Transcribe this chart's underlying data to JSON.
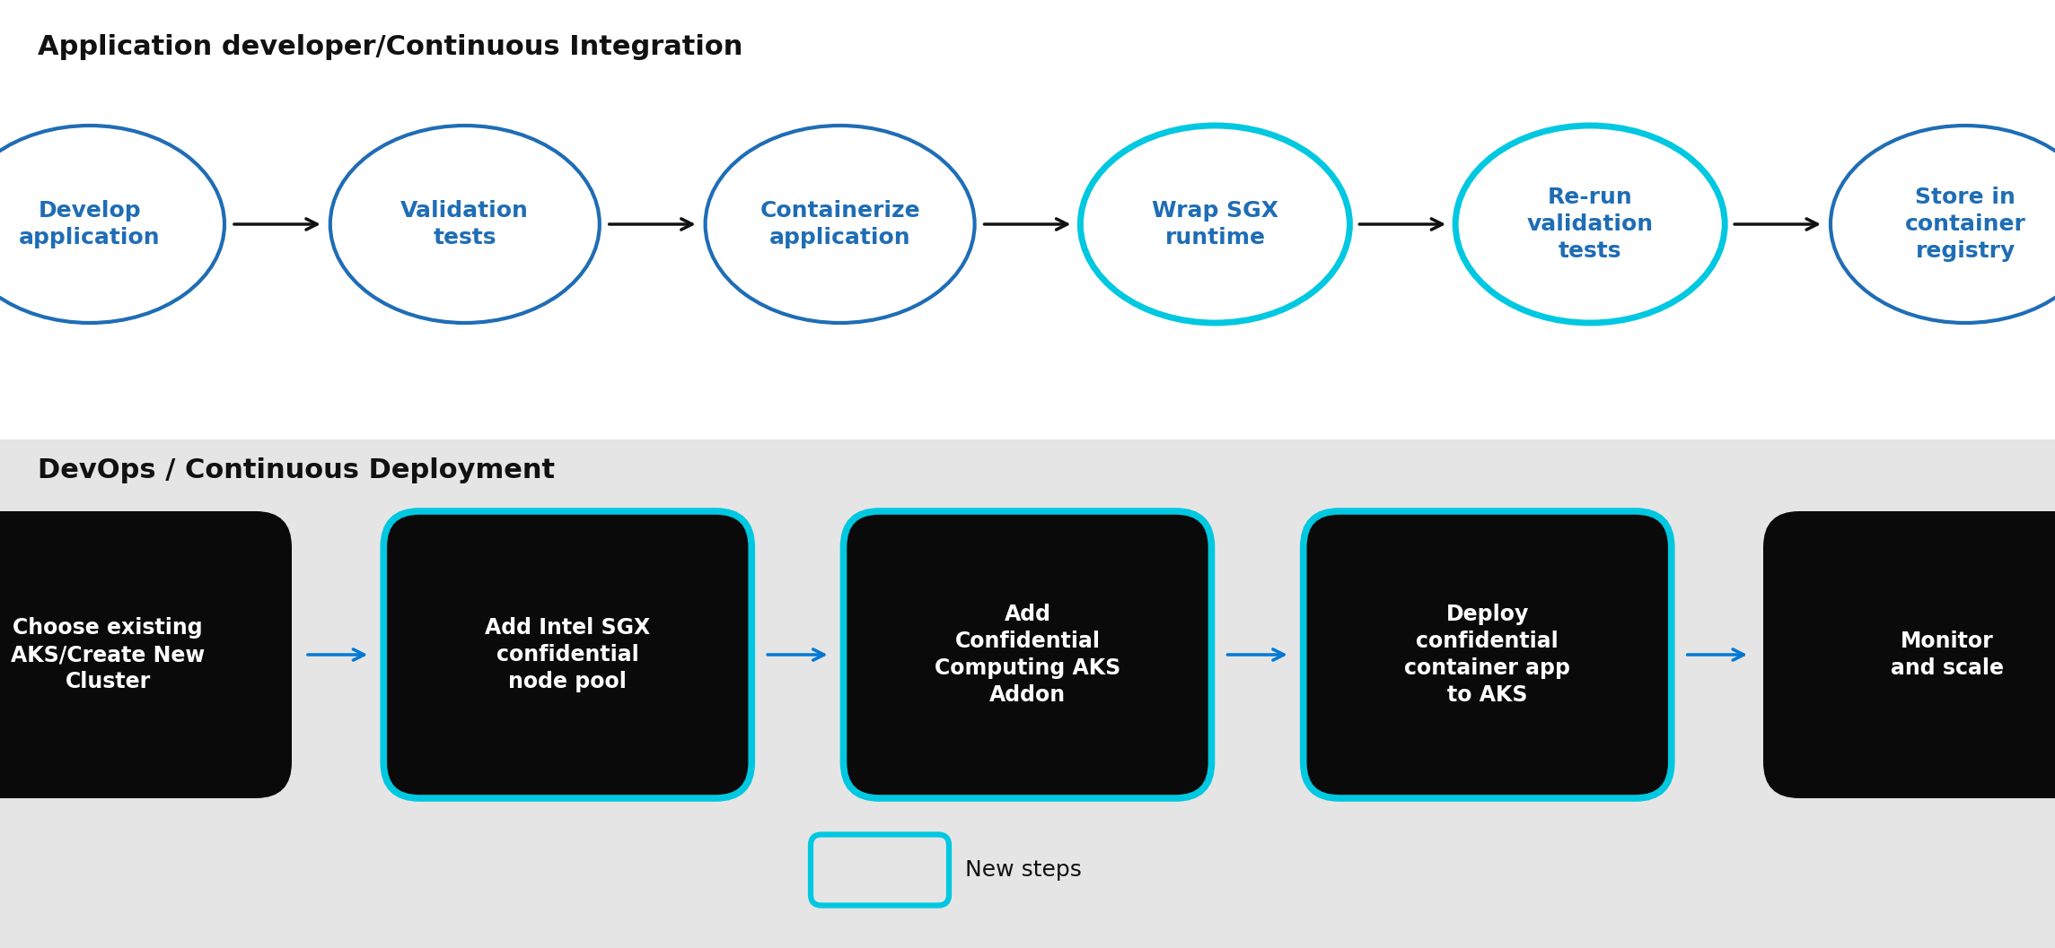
{
  "title_top": "Application developer/Continuous Integration",
  "title_bottom": "DevOps / Continuous Deployment",
  "top_section_bg": "#ffffff",
  "bottom_section_bg": "#e5e5e5",
  "top_nodes": [
    {
      "label": "Develop\napplication",
      "new": false
    },
    {
      "label": "Validation\ntests",
      "new": false
    },
    {
      "label": "Containerize\napplication",
      "new": false
    },
    {
      "label": "Wrap SGX\nruntime",
      "new": true
    },
    {
      "label": "Re-run\nvalidation\ntests",
      "new": true
    },
    {
      "label": "Store in\ncontainer\nregistry",
      "new": false
    }
  ],
  "bottom_nodes": [
    {
      "label": "Choose existing\nAKS/Create New\nCluster",
      "new": false
    },
    {
      "label": "Add Intel SGX\nconfidential\nnode pool",
      "new": true
    },
    {
      "label": "Add\nConfidential\nComputing AKS\nAddon",
      "new": true
    },
    {
      "label": "Deploy\nconfidential\ncontainer app\nto AKS",
      "new": true
    },
    {
      "label": "Monitor\nand scale",
      "new": false
    }
  ],
  "top_node_fill": "#ffffff",
  "top_node_border_normal": "#1f6db5",
  "top_node_border_new": "#00c8e0",
  "top_text_color": "#1f6db5",
  "bottom_node_fill": "#0a0a0a",
  "bottom_node_border_normal": "#0a0a0a",
  "bottom_node_border_new": "#00c8e0",
  "bottom_text_color": "#ffffff",
  "arrow_color_top": "#111111",
  "arrow_color_bottom": "#0078d4",
  "legend_label": "New steps",
  "legend_border_color": "#00c8e0",
  "legend_fill": "#e5e5e5"
}
